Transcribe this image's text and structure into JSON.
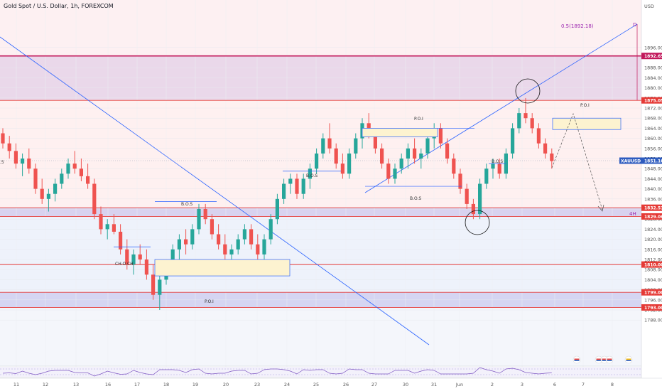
{
  "title": "Gold Spot / U.S. Dollar, 1h, FOREXCOM",
  "colors": {
    "up": "#26a69a",
    "down": "#ef5350",
    "zone_purple": "#ead8ea",
    "zone_red": "#fdeaea",
    "zone_lavender": "#d5d5f2",
    "zone_poi": "#fdf3d0",
    "level_red": "#e53935",
    "level_magenta": "#c2185b",
    "trend_blue": "#2962ff",
    "label_red_bg": "#e53935",
    "label_blue_bg": "#2e5cbf"
  },
  "chart_data": {
    "type": "candlestick",
    "title": "Gold Spot / U.S. Dollar, 1h, FOREXCOM",
    "y_axis": {
      "label": "USD",
      "range": [
        1784,
        1900
      ],
      "ticks": [
        1788,
        1792,
        1796,
        1800,
        1804,
        1808,
        1812,
        1816,
        1820,
        1824,
        1828,
        1832,
        1836,
        1840,
        1844,
        1848,
        1852,
        1856,
        1860,
        1864,
        1868,
        1872,
        1876,
        1880,
        1884,
        1888,
        1896
      ]
    },
    "x_axis": {
      "ticks": [
        "11",
        "12",
        "13",
        "16",
        "17",
        "18",
        "19",
        "20",
        "23",
        "24",
        "25",
        "26",
        "27",
        "30",
        "31",
        "Jun",
        "2",
        "3",
        "6",
        "7",
        "8"
      ]
    },
    "price_tags": [
      {
        "label": "1892.65",
        "value": 1892.65,
        "color": "#c2185b"
      },
      {
        "label": "1875.05",
        "value": 1875.05,
        "color": "#e53935"
      },
      {
        "label": "1851.16",
        "value": 1851.16,
        "color": "#2e5cbf",
        "name": "XAUUSD"
      },
      {
        "label": "1832.51",
        "value": 1832.51,
        "color": "#e53935"
      },
      {
        "label": "1829.06",
        "value": 1829.06,
        "color": "#e53935"
      },
      {
        "label": "1810.00",
        "value": 1810.0,
        "color": "#e53935"
      },
      {
        "label": "1799.00",
        "value": 1799.0,
        "color": "#e53935"
      },
      {
        "label": "1793.00",
        "value": 1793.0,
        "color": "#e53935"
      }
    ],
    "annotations": [
      {
        "text": "0.5(1892.18)",
        "kind": "fib"
      },
      {
        "text": "D",
        "kind": "point"
      },
      {
        "text": "4H",
        "kind": "timeframe"
      },
      {
        "text": "B.O.S",
        "kind": "structure"
      },
      {
        "text": "B.O.S",
        "kind": "structure"
      },
      {
        "text": "B.O.S",
        "kind": "structure"
      },
      {
        "text": "B.O.S",
        "kind": "structure"
      },
      {
        "text": "CH.O.CH",
        "kind": "structure"
      },
      {
        "text": "P.O.I",
        "kind": "zone"
      },
      {
        "text": "P.O.I",
        "kind": "zone"
      },
      {
        "text": "P.O.I",
        "kind": "zone"
      }
    ],
    "left_edge_label": ".5",
    "series": [
      {
        "name": "XAUUSD",
        "ohlc": [
          [
            0,
            1862,
            1864,
            1856,
            1858
          ],
          [
            1,
            1858,
            1861,
            1852,
            1855
          ],
          [
            2,
            1855,
            1858,
            1848,
            1850
          ],
          [
            3,
            1850,
            1854,
            1845,
            1852
          ],
          [
            4,
            1852,
            1856,
            1846,
            1848
          ],
          [
            5,
            1848,
            1850,
            1838,
            1840
          ],
          [
            6,
            1840,
            1844,
            1834,
            1836
          ],
          [
            7,
            1836,
            1840,
            1831,
            1838
          ],
          [
            8,
            1838,
            1844,
            1835,
            1842
          ],
          [
            9,
            1842,
            1848,
            1840,
            1846
          ],
          [
            10,
            1846,
            1852,
            1844,
            1850
          ],
          [
            11,
            1850,
            1855,
            1846,
            1848
          ],
          [
            12,
            1848,
            1852,
            1843,
            1845
          ],
          [
            13,
            1845,
            1850,
            1840,
            1842
          ],
          [
            14,
            1842,
            1844,
            1828,
            1830
          ],
          [
            15,
            1830,
            1833,
            1822,
            1824
          ],
          [
            16,
            1824,
            1828,
            1820,
            1826
          ],
          [
            17,
            1826,
            1830,
            1822,
            1823
          ],
          [
            18,
            1823,
            1826,
            1814,
            1816
          ],
          [
            19,
            1816,
            1820,
            1808,
            1810
          ],
          [
            20,
            1810,
            1816,
            1806,
            1814
          ],
          [
            21,
            1814,
            1818,
            1810,
            1812
          ],
          [
            22,
            1812,
            1816,
            1804,
            1806
          ],
          [
            23,
            1806,
            1810,
            1796,
            1798
          ],
          [
            24,
            1798,
            1806,
            1792,
            1804
          ],
          [
            25,
            1804,
            1812,
            1802,
            1810
          ],
          [
            26,
            1810,
            1818,
            1808,
            1816
          ],
          [
            27,
            1816,
            1822,
            1812,
            1820
          ],
          [
            28,
            1820,
            1824,
            1814,
            1818
          ],
          [
            29,
            1818,
            1826,
            1816,
            1824
          ],
          [
            30,
            1824,
            1834,
            1822,
            1832
          ],
          [
            31,
            1832,
            1834,
            1826,
            1828
          ],
          [
            32,
            1828,
            1830,
            1820,
            1822
          ],
          [
            33,
            1822,
            1826,
            1816,
            1818
          ],
          [
            34,
            1818,
            1822,
            1812,
            1814
          ],
          [
            35,
            1814,
            1818,
            1810,
            1816
          ],
          [
            36,
            1816,
            1822,
            1814,
            1820
          ],
          [
            37,
            1820,
            1826,
            1818,
            1824
          ],
          [
            38,
            1824,
            1826,
            1816,
            1818
          ],
          [
            39,
            1818,
            1822,
            1812,
            1814
          ],
          [
            40,
            1814,
            1822,
            1812,
            1820
          ],
          [
            41,
            1820,
            1830,
            1818,
            1828
          ],
          [
            42,
            1828,
            1838,
            1826,
            1836
          ],
          [
            43,
            1836,
            1844,
            1834,
            1842
          ],
          [
            44,
            1842,
            1846,
            1838,
            1844
          ],
          [
            45,
            1844,
            1846,
            1836,
            1838
          ],
          [
            46,
            1838,
            1846,
            1836,
            1844
          ],
          [
            47,
            1844,
            1850,
            1840,
            1848
          ],
          [
            48,
            1848,
            1856,
            1846,
            1854
          ],
          [
            49,
            1854,
            1862,
            1852,
            1860
          ],
          [
            50,
            1860,
            1866,
            1854,
            1856
          ],
          [
            51,
            1856,
            1858,
            1848,
            1850
          ],
          [
            52,
            1850,
            1854,
            1844,
            1846
          ],
          [
            53,
            1846,
            1856,
            1844,
            1854
          ],
          [
            54,
            1854,
            1862,
            1852,
            1860
          ],
          [
            55,
            1860,
            1868,
            1856,
            1866
          ],
          [
            56,
            1866,
            1870,
            1860,
            1862
          ],
          [
            57,
            1862,
            1864,
            1854,
            1856
          ],
          [
            58,
            1856,
            1858,
            1848,
            1850
          ],
          [
            59,
            1850,
            1852,
            1842,
            1844
          ],
          [
            60,
            1844,
            1850,
            1842,
            1848
          ],
          [
            61,
            1848,
            1854,
            1846,
            1852
          ],
          [
            62,
            1852,
            1858,
            1848,
            1856
          ],
          [
            63,
            1856,
            1860,
            1850,
            1852
          ],
          [
            64,
            1852,
            1856,
            1848,
            1854
          ],
          [
            65,
            1854,
            1862,
            1852,
            1860
          ],
          [
            66,
            1860,
            1866,
            1856,
            1864
          ],
          [
            67,
            1864,
            1866,
            1856,
            1858
          ],
          [
            68,
            1858,
            1860,
            1850,
            1852
          ],
          [
            69,
            1852,
            1854,
            1844,
            1846
          ],
          [
            70,
            1846,
            1848,
            1838,
            1840
          ],
          [
            71,
            1840,
            1842,
            1832,
            1834
          ],
          [
            72,
            1834,
            1836,
            1828,
            1830
          ],
          [
            73,
            1830,
            1844,
            1828,
            1842
          ],
          [
            74,
            1842,
            1850,
            1840,
            1848
          ],
          [
            75,
            1848,
            1852,
            1844,
            1850
          ],
          [
            76,
            1850,
            1852,
            1844,
            1846
          ],
          [
            77,
            1846,
            1856,
            1844,
            1854
          ],
          [
            78,
            1854,
            1866,
            1852,
            1864
          ],
          [
            79,
            1864,
            1872,
            1862,
            1870
          ],
          [
            80,
            1870,
            1876,
            1866,
            1868
          ],
          [
            81,
            1868,
            1870,
            1862,
            1864
          ],
          [
            82,
            1864,
            1866,
            1856,
            1858
          ],
          [
            83,
            1858,
            1860,
            1852,
            1854
          ],
          [
            84,
            1854,
            1856,
            1848,
            1851
          ]
        ]
      }
    ]
  }
}
